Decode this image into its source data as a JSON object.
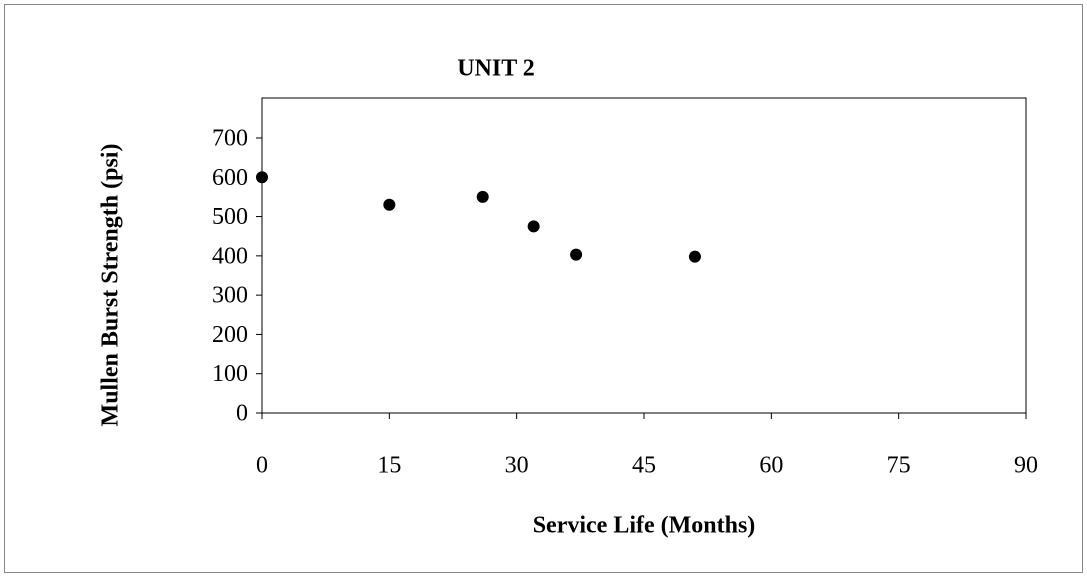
{
  "chart_data": {
    "type": "scatter",
    "title": "UNIT 2",
    "x_label": "Service Life (Months)",
    "y_label": "Mullen Burst Strength (psi)",
    "series": [
      {
        "name": "UNIT 2",
        "color": "#000000",
        "x": [
          0,
          15,
          26,
          32,
          37,
          51
        ],
        "values": [
          600,
          530,
          550,
          475,
          403,
          398
        ]
      }
    ],
    "xlim": [
      0,
      90
    ],
    "xticks": [
      0,
      15,
      30,
      45,
      60,
      75,
      90
    ],
    "ylim": [
      0,
      700
    ],
    "yticks": [
      0,
      100,
      200,
      300,
      400,
      500,
      600,
      700
    ],
    "grid": false
  }
}
